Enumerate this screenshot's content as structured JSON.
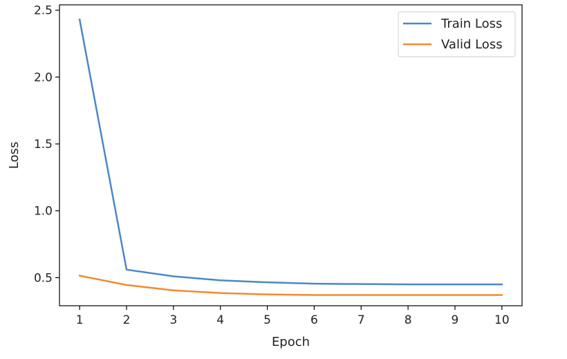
{
  "chart_data": {
    "type": "line",
    "title": "",
    "xlabel": "Epoch",
    "ylabel": "Loss",
    "x": [
      1,
      2,
      3,
      4,
      5,
      6,
      7,
      8,
      9,
      10
    ],
    "xlim": [
      0.57,
      10.43
    ],
    "ylim": [
      0.29,
      2.54
    ],
    "xticks": [
      "1",
      "2",
      "3",
      "4",
      "5",
      "6",
      "7",
      "8",
      "9",
      "10"
    ],
    "yticks": [
      "0.5",
      "1.0",
      "1.5",
      "2.0",
      "2.5"
    ],
    "ytick_values": [
      0.5,
      1.0,
      1.5,
      2.0,
      2.5
    ],
    "grid": false,
    "legend_position": "top-right",
    "series": [
      {
        "name": "Train Loss",
        "color": "#4c86c6",
        "values": [
          2.43,
          0.56,
          0.51,
          0.48,
          0.465,
          0.455,
          0.452,
          0.45,
          0.45,
          0.45
        ]
      },
      {
        "name": "Valid Loss",
        "color": "#f28a2f",
        "values": [
          0.515,
          0.445,
          0.405,
          0.385,
          0.375,
          0.37,
          0.37,
          0.37,
          0.37,
          0.37
        ]
      }
    ]
  }
}
